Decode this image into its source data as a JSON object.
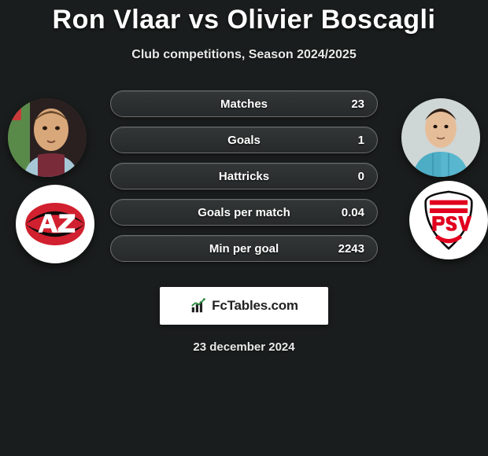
{
  "title": "Ron Vlaar vs Olivier Boscagli",
  "subtitle": "Club competitions, Season 2024/2025",
  "date": "23 december 2024",
  "logo": {
    "text": "FcTables.com"
  },
  "colors": {
    "background": "#1a1d1d",
    "text": "#ffffff",
    "bar_bg_top": "#323636",
    "bar_bg_bottom": "#272a2a",
    "bar_border": "#6a6e6e",
    "logo_bg": "#ffffff"
  },
  "players": {
    "left": {
      "name": "Ron Vlaar",
      "shirt_primary": "#7a2b3a",
      "shirt_secondary": "#a6c8d6",
      "skin": "#d9a87a",
      "club": "AZ",
      "club_colors": {
        "main": "#d1202f",
        "accent": "#ffffff",
        "outline": "#0a0a0a"
      }
    },
    "right": {
      "name": "Olivier Boscagli",
      "shirt_primary": "#58b7cf",
      "shirt_secondary": "#3a9ab3",
      "skin": "#e6bd99",
      "club": "PSV",
      "club_colors": {
        "main": "#e1001e",
        "accent": "#ffffff",
        "outline": "#0a0a0a",
        "text": "#e1001e"
      }
    }
  },
  "stats": [
    {
      "label": "Matches",
      "value": "23"
    },
    {
      "label": "Goals",
      "value": "1"
    },
    {
      "label": "Hattricks",
      "value": "0"
    },
    {
      "label": "Goals per match",
      "value": "0.04"
    },
    {
      "label": "Min per goal",
      "value": "2243"
    }
  ]
}
